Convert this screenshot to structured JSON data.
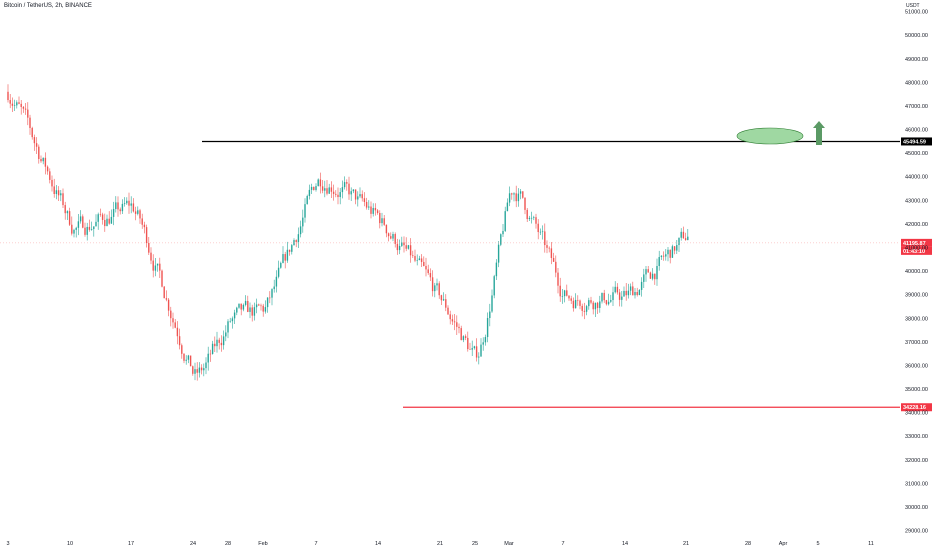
{
  "header": {
    "title": "Bitcoin / TetherUS, 2h, BINANCE",
    "currency": "USDT"
  },
  "colors": {
    "up": "#26a69a",
    "down": "#ef5350",
    "resistance_line": "#000000",
    "support_line": "#f23645",
    "last_price_line": "#f7a1a1",
    "ellipse_fill": "#9fd8a2",
    "ellipse_stroke": "#2e7d32",
    "arrow": "#5b9a65"
  },
  "chart_data": {
    "type": "candlestick",
    "title": "Bitcoin / TetherUS, 2h, BINANCE",
    "y_unit": "USDT",
    "ylim": [
      28700,
      51700
    ],
    "y_ticks": [
      29000,
      30000,
      31000,
      32000,
      33000,
      34000,
      35000,
      36000,
      37000,
      38000,
      39000,
      40000,
      41000,
      42000,
      43000,
      44000,
      45000,
      46000,
      47000,
      48000,
      49000,
      50000,
      51000
    ],
    "x_ticks": [
      "3",
      "10",
      "17",
      "24",
      "28",
      "Feb",
      "7",
      "14",
      "21",
      "25",
      "Mar",
      "7",
      "14",
      "21",
      "28",
      "Apr",
      "5",
      "11"
    ],
    "price_path": [
      [
        "3",
        47600
      ],
      [
        "10",
        41700
      ],
      [
        "17",
        42800
      ],
      [
        "24",
        35200
      ],
      [
        "28",
        38000
      ],
      [
        "Feb",
        38300
      ],
      [
        "7",
        44200
      ],
      [
        "14",
        42100
      ],
      [
        "21",
        38600
      ],
      [
        "25",
        36000
      ],
      [
        "Mar",
        44000
      ],
      [
        "7",
        38800
      ],
      [
        "14",
        38900
      ],
      [
        "21",
        41600
      ]
    ],
    "annotations": {
      "resistance": {
        "price": 45494.59,
        "label": "45494.59"
      },
      "support": {
        "price": 34228.16,
        "label": "34228.16"
      },
      "last_price": {
        "price": 41195.87,
        "label": "41195.87",
        "countdown": "01:43:10"
      },
      "target_ellipse": "green ellipse above resistance",
      "arrow": "up"
    },
    "grid": false
  }
}
